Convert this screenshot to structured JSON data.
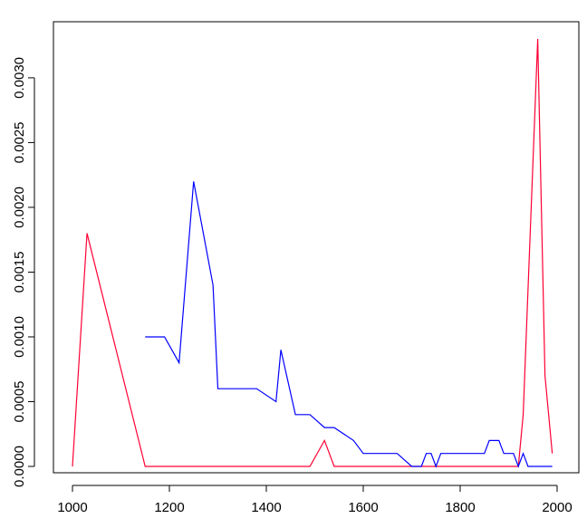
{
  "chart_data": {
    "type": "line",
    "title": "",
    "xlabel": "",
    "ylabel": "",
    "xlim": [
      1000,
      2000
    ],
    "ylim": [
      0,
      0.0033
    ],
    "x_ticks": [
      1000,
      1200,
      1400,
      1600,
      1800,
      2000
    ],
    "x_tick_labels": [
      "1000",
      "1200",
      "1400",
      "1600",
      "1800",
      "2000"
    ],
    "y_ticks": [
      0,
      0.0005,
      0.001,
      0.0015,
      0.002,
      0.0025,
      0.003
    ],
    "y_tick_labels": [
      "0.0000",
      "0.0005",
      "0.0010",
      "0.0015",
      "0.0020",
      "0.0025",
      "0.0030"
    ],
    "grid": false,
    "legend": "none",
    "series": [
      {
        "color": "#ff0033",
        "x": [
          1000,
          1030,
          1150,
          1490,
          1520,
          1540,
          1920,
          1930,
          1960,
          1975,
          1990
        ],
        "y": [
          0,
          0.0018,
          0,
          0,
          0.0002,
          0,
          0,
          0.0004,
          0.0033,
          0.0007,
          0.0001
        ]
      },
      {
        "color": "#0000ff",
        "x": [
          1150,
          1190,
          1220,
          1250,
          1290,
          1300,
          1380,
          1420,
          1430,
          1460,
          1490,
          1520,
          1540,
          1580,
          1600,
          1670,
          1700,
          1720,
          1730,
          1740,
          1750,
          1760,
          1850,
          1860,
          1880,
          1890,
          1910,
          1920,
          1930,
          1940,
          1990
        ],
        "y": [
          0.001,
          0.001,
          0.0008,
          0.0022,
          0.0014,
          0.0006,
          0.0006,
          0.0005,
          0.0009,
          0.0004,
          0.0004,
          0.0003,
          0.0003,
          0.0002,
          0.0001,
          0.0001,
          0,
          0,
          0.0001,
          0.0001,
          0,
          0.0001,
          0.0001,
          0.0002,
          0.0002,
          0.0001,
          0.0001,
          0,
          0.0001,
          0,
          0
        ]
      }
    ]
  }
}
